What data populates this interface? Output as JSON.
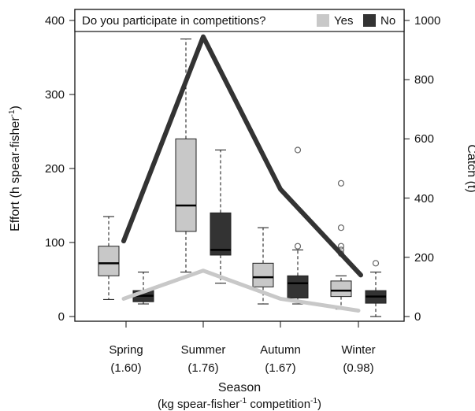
{
  "chart_data": {
    "type": "box",
    "legend": {
      "title": "Do you participate in competitions?",
      "items": [
        {
          "label": "Yes",
          "color": "#c8c8c8"
        },
        {
          "label": "No",
          "color": "#333333"
        }
      ],
      "placement": "top"
    },
    "x": {
      "categories": [
        "Spring",
        "Summer",
        "Autumn",
        "Winter"
      ],
      "notes": [
        "(1.60)",
        "(1.76)",
        "(1.67)",
        "(0.98)"
      ],
      "title_line1": "Season",
      "title_line2_parts": [
        "(kg spear-fisher",
        "-1",
        " competition",
        "-1",
        ")"
      ]
    },
    "y_left": {
      "title_parts": [
        "Effort (h spear-fisher",
        "-1",
        ")"
      ],
      "range": [
        0,
        400
      ],
      "ticks": [
        "0",
        "100",
        "200",
        "300",
        "400"
      ]
    },
    "y_right": {
      "title": "Catch (t)",
      "range": [
        0,
        1000
      ],
      "ticks": [
        "0",
        "200",
        "400",
        "600",
        "800",
        "1000"
      ]
    },
    "boxes": [
      {
        "season": "Spring",
        "group": "Yes",
        "min": 23,
        "q1": 55,
        "median": 72,
        "q3": 95,
        "max": 135,
        "outliers": []
      },
      {
        "season": "Spring",
        "group": "No",
        "min": 17,
        "q1": 20,
        "median": 28,
        "q3": 35,
        "max": 60,
        "outliers": []
      },
      {
        "season": "Summer",
        "group": "Yes",
        "min": 60,
        "q1": 115,
        "median": 150,
        "q3": 240,
        "max": 375,
        "outliers": []
      },
      {
        "season": "Summer",
        "group": "No",
        "min": 45,
        "q1": 83,
        "median": 90,
        "q3": 140,
        "max": 225,
        "outliers": []
      },
      {
        "season": "Autumn",
        "group": "Yes",
        "min": 17,
        "q1": 40,
        "median": 53,
        "q3": 72,
        "max": 120,
        "outliers": []
      },
      {
        "season": "Autumn",
        "group": "No",
        "min": 17,
        "q1": 25,
        "median": 45,
        "q3": 55,
        "max": 90,
        "outliers": [
          95,
          225
        ]
      },
      {
        "season": "Winter",
        "group": "Yes",
        "min": 10,
        "q1": 27,
        "median": 35,
        "q3": 48,
        "max": 55,
        "outliers": [
          85,
          90,
          95,
          120,
          180
        ]
      },
      {
        "season": "Winter",
        "group": "No",
        "min": 0,
        "q1": 18,
        "median": 27,
        "q3": 35,
        "max": 60,
        "outliers": [
          72
        ]
      }
    ],
    "catch_lines": [
      {
        "group": "No",
        "color": "#333333",
        "values": [
          255,
          945,
          430,
          140
        ]
      },
      {
        "group": "Yes",
        "color": "#c8c8c8",
        "values": [
          60,
          155,
          60,
          20
        ]
      }
    ]
  }
}
